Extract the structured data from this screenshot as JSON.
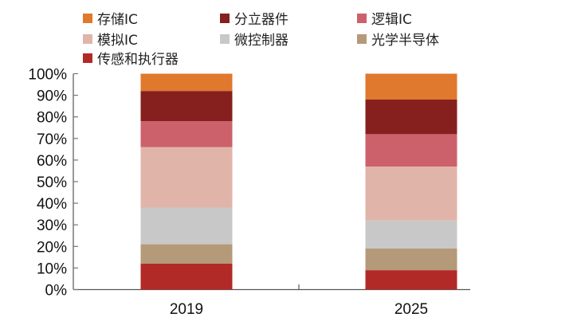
{
  "chart_data": {
    "type": "bar",
    "stacked": true,
    "title": "",
    "xlabel": "",
    "ylabel": "",
    "ylim": [
      0,
      100
    ],
    "categories": [
      "2019",
      "2025"
    ],
    "yticks": [
      "0%",
      "10%",
      "20%",
      "30%",
      "40%",
      "50%",
      "60%",
      "70%",
      "80%",
      "90%",
      "100%"
    ],
    "legend_position": "top",
    "series": [
      {
        "name": "传感和执行器",
        "color": "#b22a27",
        "values": [
          12,
          9
        ]
      },
      {
        "name": "光学半导体",
        "color": "#b59a79",
        "values": [
          9,
          10
        ]
      },
      {
        "name": "微控制器",
        "color": "#c8c8c8",
        "values": [
          17,
          13
        ]
      },
      {
        "name": "模拟IC",
        "color": "#e1b4aa",
        "values": [
          28,
          25
        ]
      },
      {
        "name": "逻辑IC",
        "color": "#cc616b",
        "values": [
          12,
          15
        ]
      },
      {
        "name": "分立器件",
        "color": "#85201e",
        "values": [
          14,
          16
        ]
      },
      {
        "name": "存储IC",
        "color": "#e0782e",
        "values": [
          8,
          12
        ]
      }
    ]
  }
}
